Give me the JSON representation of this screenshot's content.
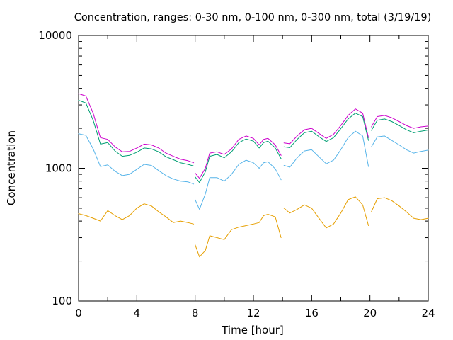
{
  "chart_data": {
    "type": "line",
    "title": "Concentration, ranges: 0-30 nm, 0-100 nm, 0-300 nm, total (3/19/19)",
    "xlabel": "Time [hour]",
    "ylabel": "Concentration",
    "xlim": [
      0,
      24
    ],
    "ylim": [
      100,
      10000
    ],
    "yscale": "log",
    "grid": false,
    "legend": "none",
    "x_ticks": [
      "0",
      "4",
      "8",
      "12",
      "16",
      "20",
      "24"
    ],
    "y_ticks": [
      "100",
      "1000",
      "10000"
    ],
    "series": [
      {
        "color": "#cc00cc",
        "segments": [
          [
            [
              0,
              3650
            ],
            [
              0.5,
              3500
            ],
            [
              1,
              2600
            ],
            [
              1.5,
              1700
            ],
            [
              2,
              1650
            ],
            [
              2.5,
              1450
            ],
            [
              3,
              1330
            ],
            [
              3.5,
              1340
            ],
            [
              4,
              1420
            ],
            [
              4.5,
              1520
            ],
            [
              5,
              1500
            ],
            [
              5.5,
              1420
            ],
            [
              6,
              1300
            ],
            [
              6.5,
              1230
            ],
            [
              7,
              1170
            ],
            [
              7.5,
              1140
            ],
            [
              7.9,
              1100
            ]
          ],
          [
            [
              8,
              920
            ],
            [
              8.3,
              840
            ],
            [
              8.7,
              1000
            ],
            [
              9,
              1300
            ],
            [
              9.5,
              1330
            ],
            [
              10,
              1270
            ],
            [
              10.5,
              1400
            ],
            [
              11,
              1650
            ],
            [
              11.5,
              1750
            ],
            [
              12,
              1680
            ],
            [
              12.4,
              1500
            ],
            [
              12.7,
              1650
            ],
            [
              13,
              1680
            ],
            [
              13.5,
              1500
            ],
            [
              13.9,
              1250
            ]
          ],
          [
            [
              14.1,
              1550
            ],
            [
              14.5,
              1530
            ],
            [
              15,
              1750
            ],
            [
              15.5,
              1950
            ],
            [
              16,
              2000
            ],
            [
              16.5,
              1830
            ],
            [
              17,
              1680
            ],
            [
              17.5,
              1800
            ],
            [
              18,
              2100
            ],
            [
              18.5,
              2500
            ],
            [
              19,
              2800
            ],
            [
              19.5,
              2600
            ],
            [
              19.9,
              1700
            ]
          ],
          [
            [
              20.1,
              2050
            ],
            [
              20.5,
              2450
            ],
            [
              21,
              2500
            ],
            [
              21.5,
              2400
            ],
            [
              22,
              2250
            ],
            [
              22.5,
              2100
            ],
            [
              23,
              2000
            ],
            [
              23.5,
              2050
            ],
            [
              24,
              2080
            ]
          ]
        ]
      },
      {
        "color": "#009e73",
        "segments": [
          [
            [
              0,
              3250
            ],
            [
              0.5,
              3100
            ],
            [
              1,
              2300
            ],
            [
              1.5,
              1520
            ],
            [
              2,
              1560
            ],
            [
              2.5,
              1350
            ],
            [
              3,
              1230
            ],
            [
              3.5,
              1250
            ],
            [
              4,
              1320
            ],
            [
              4.5,
              1420
            ],
            [
              5,
              1400
            ],
            [
              5.5,
              1330
            ],
            [
              6,
              1220
            ],
            [
              6.5,
              1160
            ],
            [
              7,
              1100
            ],
            [
              7.5,
              1070
            ],
            [
              7.9,
              1040
            ]
          ],
          [
            [
              8,
              860
            ],
            [
              8.3,
              780
            ],
            [
              8.7,
              940
            ],
            [
              9,
              1230
            ],
            [
              9.5,
              1270
            ],
            [
              10,
              1200
            ],
            [
              10.5,
              1330
            ],
            [
              11,
              1560
            ],
            [
              11.5,
              1660
            ],
            [
              12,
              1600
            ],
            [
              12.4,
              1420
            ],
            [
              12.7,
              1560
            ],
            [
              13,
              1600
            ],
            [
              13.5,
              1420
            ],
            [
              13.9,
              1180
            ]
          ],
          [
            [
              14.1,
              1450
            ],
            [
              14.5,
              1430
            ],
            [
              15,
              1650
            ],
            [
              15.5,
              1850
            ],
            [
              16,
              1900
            ],
            [
              16.5,
              1730
            ],
            [
              17,
              1590
            ],
            [
              17.5,
              1700
            ],
            [
              18,
              1990
            ],
            [
              18.5,
              2350
            ],
            [
              19,
              2600
            ],
            [
              19.5,
              2450
            ],
            [
              19.9,
              1620
            ]
          ],
          [
            [
              20.1,
              1930
            ],
            [
              20.5,
              2300
            ],
            [
              21,
              2350
            ],
            [
              21.5,
              2250
            ],
            [
              22,
              2100
            ],
            [
              22.5,
              1950
            ],
            [
              23,
              1850
            ],
            [
              23.5,
              1900
            ],
            [
              24,
              1940
            ]
          ]
        ]
      },
      {
        "color": "#56b4e9",
        "segments": [
          [
            [
              0,
              1820
            ],
            [
              0.5,
              1770
            ],
            [
              1,
              1400
            ],
            [
              1.5,
              1030
            ],
            [
              2,
              1060
            ],
            [
              2.5,
              950
            ],
            [
              3,
              880
            ],
            [
              3.5,
              900
            ],
            [
              4,
              980
            ],
            [
              4.5,
              1070
            ],
            [
              5,
              1050
            ],
            [
              5.5,
              960
            ],
            [
              6,
              880
            ],
            [
              6.5,
              830
            ],
            [
              7,
              800
            ],
            [
              7.5,
              790
            ],
            [
              7.9,
              760
            ]
          ],
          [
            [
              8,
              580
            ],
            [
              8.3,
              490
            ],
            [
              8.7,
              640
            ],
            [
              9,
              850
            ],
            [
              9.5,
              850
            ],
            [
              10,
              800
            ],
            [
              10.5,
              900
            ],
            [
              11,
              1070
            ],
            [
              11.5,
              1150
            ],
            [
              12,
              1100
            ],
            [
              12.4,
              1000
            ],
            [
              12.7,
              1100
            ],
            [
              13,
              1120
            ],
            [
              13.5,
              990
            ],
            [
              13.9,
              820
            ]
          ],
          [
            [
              14.1,
              1050
            ],
            [
              14.5,
              1020
            ],
            [
              15,
              1200
            ],
            [
              15.5,
              1350
            ],
            [
              16,
              1380
            ],
            [
              16.5,
              1220
            ],
            [
              17,
              1080
            ],
            [
              17.5,
              1150
            ],
            [
              18,
              1380
            ],
            [
              18.5,
              1700
            ],
            [
              19,
              1900
            ],
            [
              19.5,
              1750
            ],
            [
              19.9,
              1030
            ]
          ],
          [
            [
              20.1,
              1450
            ],
            [
              20.5,
              1720
            ],
            [
              21,
              1750
            ],
            [
              21.5,
              1620
            ],
            [
              22,
              1500
            ],
            [
              22.5,
              1380
            ],
            [
              23,
              1300
            ],
            [
              23.5,
              1340
            ],
            [
              24,
              1370
            ]
          ]
        ]
      },
      {
        "color": "#e69f00",
        "segments": [
          [
            [
              0,
              455
            ],
            [
              0.5,
              440
            ],
            [
              1,
              420
            ],
            [
              1.5,
              400
            ],
            [
              2,
              480
            ],
            [
              2.5,
              440
            ],
            [
              3,
              410
            ],
            [
              3.5,
              440
            ],
            [
              4,
              500
            ],
            [
              4.5,
              540
            ],
            [
              5,
              520
            ],
            [
              5.5,
              470
            ],
            [
              6,
              430
            ],
            [
              6.5,
              390
            ],
            [
              7,
              400
            ],
            [
              7.5,
              390
            ],
            [
              7.9,
              380
            ]
          ],
          [
            [
              8,
              265
            ],
            [
              8.3,
              215
            ],
            [
              8.7,
              240
            ],
            [
              9,
              310
            ],
            [
              9.5,
              300
            ],
            [
              10,
              290
            ],
            [
              10.5,
              345
            ],
            [
              11,
              360
            ],
            [
              11.5,
              370
            ],
            [
              12,
              380
            ],
            [
              12.4,
              390
            ],
            [
              12.7,
              440
            ],
            [
              13,
              450
            ],
            [
              13.5,
              430
            ],
            [
              13.9,
              300
            ]
          ],
          [
            [
              14.1,
              500
            ],
            [
              14.5,
              460
            ],
            [
              15,
              490
            ],
            [
              15.5,
              530
            ],
            [
              16,
              500
            ],
            [
              16.5,
              420
            ],
            [
              17,
              355
            ],
            [
              17.5,
              380
            ],
            [
              18,
              460
            ],
            [
              18.5,
              580
            ],
            [
              19,
              610
            ],
            [
              19.5,
              530
            ],
            [
              19.9,
              370
            ]
          ],
          [
            [
              20.1,
              470
            ],
            [
              20.5,
              590
            ],
            [
              21,
              600
            ],
            [
              21.5,
              570
            ],
            [
              22,
              520
            ],
            [
              22.5,
              470
            ],
            [
              23,
              420
            ],
            [
              23.5,
              410
            ],
            [
              24,
              420
            ]
          ]
        ]
      }
    ]
  }
}
